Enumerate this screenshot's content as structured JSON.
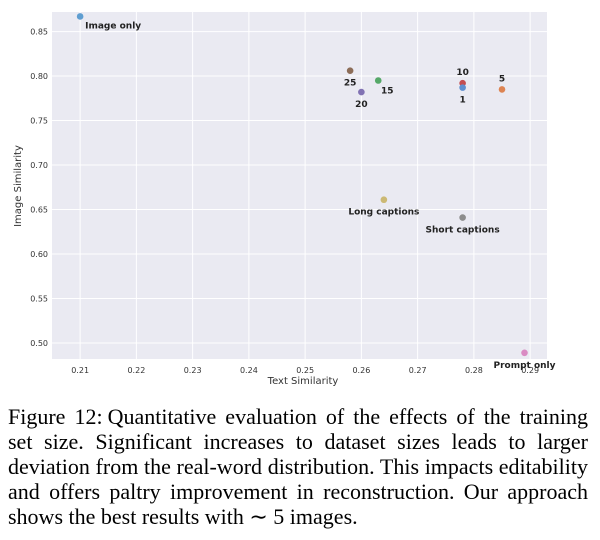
{
  "chart_data": {
    "type": "scatter",
    "xlabel": "Text Similarity",
    "ylabel": "Image Similarity",
    "xlim": [
      0.205,
      0.293
    ],
    "ylim": [
      0.482,
      0.872
    ],
    "x_ticks": [
      0.21,
      0.22,
      0.23,
      0.24,
      0.25,
      0.26,
      0.27,
      0.28,
      0.29
    ],
    "y_ticks": [
      0.5,
      0.55,
      0.6,
      0.65,
      0.7,
      0.75,
      0.8,
      0.85
    ],
    "grid": true,
    "background": "#eaeaf2",
    "points": [
      {
        "label": "Image only",
        "x": 0.21,
        "y": 0.867,
        "color": "#5f9ed1",
        "label_pos": "right"
      },
      {
        "label": "25",
        "x": 0.258,
        "y": 0.806,
        "color": "#8c6d58",
        "label_pos": "below"
      },
      {
        "label": "15",
        "x": 0.263,
        "y": 0.795,
        "color": "#55a868",
        "label_pos": "below-right"
      },
      {
        "label": "20",
        "x": 0.26,
        "y": 0.782,
        "color": "#8172b3",
        "label_pos": "below"
      },
      {
        "label": "10",
        "x": 0.278,
        "y": 0.792,
        "color": "#c44e52",
        "label_pos": "above"
      },
      {
        "label": "1",
        "x": 0.278,
        "y": 0.787,
        "color": "#5f8fd0",
        "label_pos": "below"
      },
      {
        "label": "5",
        "x": 0.285,
        "y": 0.785,
        "color": "#dd8452",
        "label_pos": "above"
      },
      {
        "label": "Long captions",
        "x": 0.264,
        "y": 0.661,
        "color": "#ccb974",
        "label_pos": "below"
      },
      {
        "label": "Short captions",
        "x": 0.278,
        "y": 0.641,
        "color": "#8c8c8c",
        "label_pos": "below"
      },
      {
        "label": "Prompt only",
        "x": 0.289,
        "y": 0.489,
        "color": "#da8bc3",
        "label_pos": "below"
      }
    ]
  },
  "caption": {
    "label": "Figure 12:",
    "text": "Quantitative evaluation of the effects of the training set size. Significant increases to dataset sizes leads to larger deviation from the real-word distribution. This impacts editability and offers paltry improvement in reconstruction. Our approach shows the best results with ∼ 5 images."
  }
}
